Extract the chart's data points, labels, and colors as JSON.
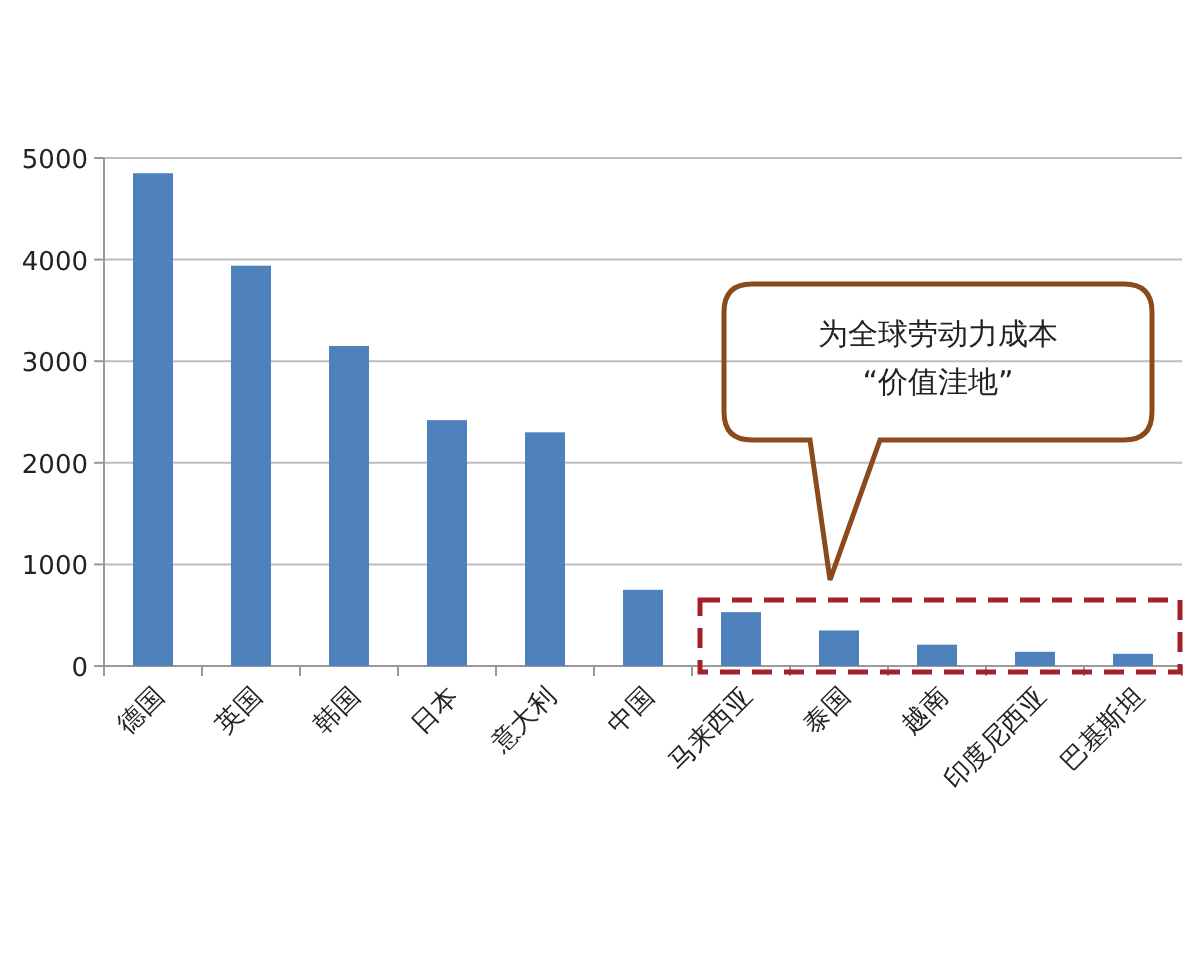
{
  "chart_data": {
    "type": "bar",
    "categories": [
      "德国",
      "英国",
      "韩国",
      "日本",
      "意大利",
      "中国",
      "马来西亚",
      "泰国",
      "越南",
      "印度尼西亚",
      "巴基斯坦"
    ],
    "values": [
      4850,
      3940,
      3150,
      2420,
      2300,
      750,
      530,
      350,
      210,
      140,
      120
    ],
    "color": "#4f81bd",
    "ylim": [
      0,
      5000
    ],
    "yticks": [
      0,
      1000,
      2000,
      3000,
      4000,
      5000
    ],
    "grid": "y",
    "annotations": [
      "为全球劳动力成本\n“价值洼地”"
    ]
  }
}
